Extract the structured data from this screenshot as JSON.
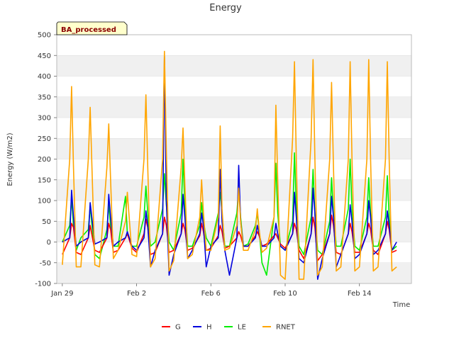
{
  "chart_data": {
    "type": "line",
    "title": "Energy",
    "xlabel": "Time",
    "ylabel": "Energy (W/m2)",
    "tag": "BA_processed",
    "xlim": [
      -0.3,
      18.8
    ],
    "ylim": [
      -100,
      500
    ],
    "yticks": [
      -100,
      -50,
      0,
      50,
      100,
      150,
      200,
      250,
      300,
      350,
      400,
      450,
      500
    ],
    "xticks": [
      {
        "label": "Jan 29",
        "day": 0
      },
      {
        "label": "Feb 2",
        "day": 4
      },
      {
        "label": "Feb 6",
        "day": 8
      },
      {
        "label": "Feb 10",
        "day": 12
      },
      {
        "label": "Feb 14",
        "day": 16
      }
    ],
    "grid": true,
    "legend_position": "bottom-center",
    "series": [
      {
        "name": "G",
        "color": "#ff0000",
        "x": [
          0.0,
          0.4,
          0.5,
          0.6,
          0.75,
          1.0,
          1.4,
          1.5,
          1.75,
          2.0,
          2.4,
          2.5,
          2.6,
          2.75,
          3.0,
          3.4,
          3.5,
          3.75,
          4.0,
          4.4,
          4.5,
          4.6,
          4.75,
          5.0,
          5.4,
          5.5,
          5.6,
          5.75,
          6.0,
          6.4,
          6.5,
          6.6,
          6.75,
          7.0,
          7.4,
          7.5,
          7.6,
          7.75,
          8.0,
          8.4,
          8.5,
          8.6,
          8.75,
          9.0,
          9.4,
          9.5,
          9.6,
          9.75,
          10.0,
          10.4,
          10.5,
          10.6,
          10.75,
          11.0,
          11.4,
          11.5,
          11.6,
          11.75,
          12.0,
          12.4,
          12.5,
          12.6,
          12.75,
          13.0,
          13.4,
          13.5,
          13.6,
          13.75,
          14.0,
          14.4,
          14.5,
          14.6,
          14.75,
          15.0,
          15.4,
          15.5,
          15.6,
          15.75,
          16.0,
          16.4,
          16.5,
          16.6,
          16.75,
          17.0,
          17.4,
          17.5,
          17.6,
          17.75,
          18.0
        ],
        "y": [
          -30,
          10,
          45,
          35,
          -25,
          -30,
          10,
          40,
          -20,
          -25,
          10,
          45,
          30,
          -25,
          -20,
          10,
          20,
          -15,
          -25,
          20,
          55,
          35,
          -30,
          -25,
          20,
          60,
          40,
          -25,
          -20,
          20,
          45,
          30,
          -20,
          -15,
          15,
          45,
          25,
          -20,
          -15,
          15,
          40,
          25,
          -15,
          -10,
          10,
          25,
          15,
          -10,
          -10,
          15,
          25,
          15,
          -10,
          -5,
          15,
          20,
          10,
          -5,
          -15,
          20,
          45,
          30,
          -20,
          -40,
          20,
          60,
          35,
          -45,
          -30,
          20,
          65,
          40,
          -25,
          -30,
          20,
          45,
          25,
          -25,
          -25,
          20,
          45,
          30,
          -20,
          -30,
          20,
          50,
          30,
          -25,
          -20
        ]
      },
      {
        "name": "H",
        "color": "#0000dd",
        "x": [
          0.0,
          0.4,
          0.5,
          0.6,
          0.75,
          1.0,
          1.4,
          1.5,
          1.75,
          2.0,
          2.4,
          2.5,
          2.6,
          2.75,
          3.0,
          3.4,
          3.5,
          3.75,
          4.0,
          4.4,
          4.5,
          4.6,
          4.75,
          5.0,
          5.4,
          5.5,
          5.6,
          5.75,
          6.0,
          6.4,
          6.5,
          6.6,
          6.75,
          7.0,
          7.4,
          7.5,
          7.6,
          7.75,
          8.0,
          8.4,
          8.5,
          8.6,
          8.75,
          9.0,
          9.4,
          9.5,
          9.6,
          9.75,
          10.0,
          10.4,
          10.5,
          10.6,
          10.75,
          11.0,
          11.4,
          11.5,
          11.6,
          11.75,
          12.0,
          12.4,
          12.5,
          12.6,
          12.75,
          13.0,
          13.4,
          13.5,
          13.6,
          13.75,
          14.0,
          14.4,
          14.5,
          14.6,
          14.75,
          15.0,
          15.4,
          15.5,
          15.6,
          15.75,
          16.0,
          16.4,
          16.5,
          16.6,
          16.75,
          17.0,
          17.4,
          17.5,
          17.6,
          17.75,
          18.0
        ],
        "y": [
          0,
          10,
          125,
          60,
          -10,
          0,
          10,
          95,
          -5,
          0,
          10,
          115,
          60,
          -10,
          0,
          10,
          25,
          -10,
          -20,
          10,
          75,
          40,
          -60,
          -20,
          20,
          448,
          100,
          -80,
          -30,
          20,
          115,
          60,
          -40,
          -20,
          20,
          70,
          40,
          -60,
          -10,
          10,
          175,
          50,
          -20,
          -80,
          10,
          185,
          50,
          -10,
          -10,
          10,
          40,
          20,
          -10,
          -10,
          10,
          45,
          20,
          -10,
          -20,
          20,
          120,
          60,
          -40,
          -50,
          20,
          130,
          70,
          -90,
          -40,
          20,
          110,
          60,
          -60,
          -30,
          20,
          90,
          50,
          -40,
          -30,
          20,
          100,
          60,
          -30,
          -20,
          20,
          75,
          40,
          -20,
          0
        ]
      },
      {
        "name": "LE",
        "color": "#00ee00",
        "x": [
          0.0,
          0.4,
          0.5,
          0.6,
          0.75,
          1.0,
          1.4,
          1.5,
          1.75,
          2.0,
          2.4,
          2.5,
          2.6,
          2.75,
          3.0,
          3.4,
          3.5,
          3.75,
          4.0,
          4.4,
          4.5,
          4.6,
          4.75,
          5.0,
          5.4,
          5.5,
          5.6,
          5.75,
          6.0,
          6.4,
          6.5,
          6.6,
          6.75,
          7.0,
          7.4,
          7.5,
          7.6,
          7.75,
          8.0,
          8.4,
          8.5,
          8.6,
          8.75,
          9.0,
          9.4,
          9.5,
          9.6,
          9.75,
          10.0,
          10.4,
          10.5,
          10.6,
          10.75,
          11.0,
          11.4,
          11.5,
          11.6,
          11.75,
          12.0,
          12.4,
          12.5,
          12.6,
          12.75,
          13.0,
          13.4,
          13.5,
          13.6,
          13.75,
          14.0,
          14.4,
          14.5,
          14.6,
          14.75,
          15.0,
          15.4,
          15.5,
          15.6,
          15.75,
          16.0,
          16.4,
          16.5,
          16.6,
          16.75,
          17.0,
          17.4,
          17.5,
          17.6,
          17.75,
          18.0
        ],
        "y": [
          0,
          40,
          105,
          40,
          -20,
          10,
          30,
          85,
          -30,
          -40,
          30,
          90,
          40,
          -10,
          -10,
          110,
          20,
          -10,
          -10,
          60,
          135,
          70,
          -10,
          0,
          80,
          165,
          90,
          0,
          -20,
          70,
          200,
          90,
          -10,
          -10,
          40,
          95,
          50,
          10,
          -10,
          70,
          120,
          70,
          -10,
          -10,
          70,
          130,
          60,
          -10,
          -5,
          40,
          70,
          30,
          -50,
          -80,
          60,
          190,
          70,
          -10,
          -20,
          50,
          215,
          90,
          -10,
          -30,
          60,
          175,
          70,
          -20,
          -30,
          50,
          155,
          70,
          -10,
          -10,
          80,
          200,
          80,
          -10,
          -20,
          60,
          155,
          70,
          -10,
          -10,
          60,
          160,
          60,
          -20,
          -10
        ]
      },
      {
        "name": "RNET",
        "color": "#ffa500",
        "x": [
          0.0,
          0.4,
          0.5,
          0.6,
          0.75,
          1.0,
          1.4,
          1.5,
          1.75,
          2.0,
          2.4,
          2.5,
          2.6,
          2.75,
          3.0,
          3.4,
          3.5,
          3.75,
          4.0,
          4.4,
          4.5,
          4.6,
          4.75,
          5.0,
          5.4,
          5.5,
          5.6,
          5.75,
          6.0,
          6.4,
          6.5,
          6.6,
          6.75,
          7.0,
          7.4,
          7.5,
          7.6,
          7.75,
          8.0,
          8.4,
          8.5,
          8.6,
          8.75,
          9.0,
          9.4,
          9.5,
          9.6,
          9.75,
          10.0,
          10.4,
          10.5,
          10.6,
          10.75,
          11.0,
          11.4,
          11.5,
          11.6,
          11.75,
          12.0,
          12.4,
          12.5,
          12.6,
          12.75,
          13.0,
          13.4,
          13.5,
          13.6,
          13.75,
          14.0,
          14.4,
          14.5,
          14.6,
          14.75,
          15.0,
          15.4,
          15.5,
          15.6,
          15.75,
          16.0,
          16.4,
          16.5,
          16.6,
          16.75,
          17.0,
          17.4,
          17.5,
          17.6,
          17.75,
          18.0
        ],
        "y": [
          -55,
          200,
          375,
          180,
          -60,
          -60,
          200,
          325,
          -55,
          -60,
          180,
          285,
          150,
          -40,
          -20,
          50,
          120,
          -30,
          -35,
          200,
          355,
          180,
          -60,
          -40,
          200,
          460,
          220,
          -70,
          -45,
          180,
          275,
          140,
          -40,
          -30,
          60,
          150,
          70,
          -20,
          -20,
          60,
          280,
          80,
          -20,
          -15,
          40,
          130,
          50,
          -20,
          -20,
          30,
          80,
          30,
          -25,
          -15,
          60,
          330,
          150,
          -80,
          -90,
          250,
          435,
          200,
          -90,
          -90,
          250,
          440,
          200,
          -80,
          -60,
          200,
          385,
          180,
          -70,
          -60,
          200,
          435,
          200,
          -70,
          -60,
          200,
          440,
          200,
          -70,
          -60,
          200,
          435,
          200,
          -70,
          -60
        ]
      }
    ]
  }
}
